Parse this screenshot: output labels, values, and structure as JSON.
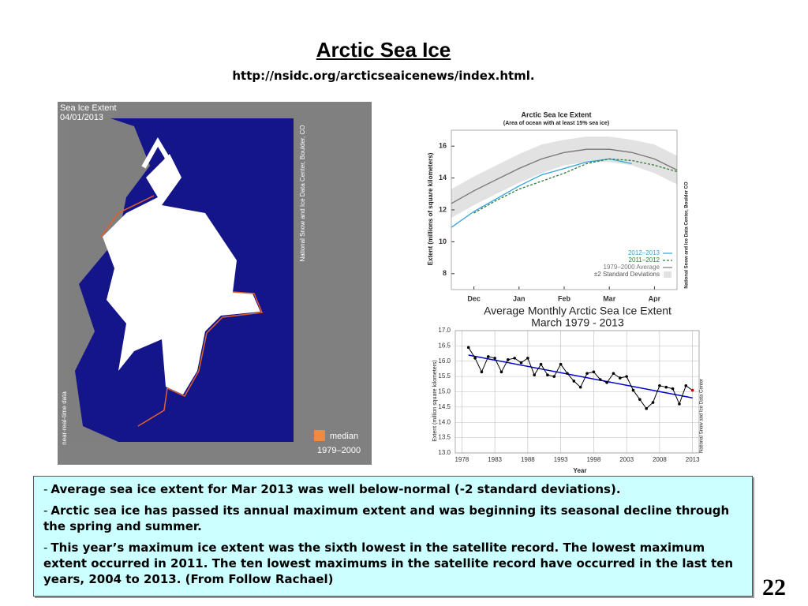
{
  "title": "Arctic Sea Ice",
  "url": "http://nsidc.org/arcticseaicenews/index.html.",
  "map": {
    "title": "Sea Ice Extent",
    "date": "04/01/2013",
    "credit": "National Snow and Ice Data Center, Boulder, CO",
    "note": "near-real-time data",
    "legend_label": "median",
    "legend_period": "1979–2000",
    "median_color": "#f08a40"
  },
  "chart_data": [
    {
      "type": "line",
      "title": "Arctic Sea Ice Extent",
      "subtitle": "(Area of ocean with at least 15% sea ice)",
      "y_label": "Extent (millions of square kilometers)",
      "credit": "National Snow and Ice Data Center, Boulder CO",
      "categories": [
        null,
        "Dec",
        null,
        "Jan",
        null,
        "Feb",
        null,
        "Mar",
        null,
        "Apr",
        null
      ],
      "ylim": [
        7,
        17
      ],
      "yticks": [
        8,
        10,
        12,
        14,
        16
      ],
      "series": [
        {
          "name": "2012–2013",
          "color": "#33a3dc",
          "values": [
            10.9,
            11.9,
            12.7,
            13.5,
            14.2,
            14.6,
            15.0,
            15.2,
            14.9,
            null,
            null
          ]
        },
        {
          "name": "2011–2012",
          "color": "#2f7a3a",
          "dash": true,
          "values": [
            null,
            11.8,
            12.6,
            13.3,
            13.8,
            14.3,
            14.9,
            15.2,
            15.1,
            14.8,
            14.4
          ]
        },
        {
          "name": "1979–2000 Average",
          "color": "#777777",
          "values": [
            12.4,
            13.2,
            13.9,
            14.6,
            15.2,
            15.6,
            15.8,
            15.8,
            15.6,
            15.2,
            14.5
          ]
        }
      ],
      "band": {
        "name": "±2 Standard Deviations",
        "color": "#e2e2e2",
        "lower": [
          11.5,
          12.3,
          13.0,
          13.7,
          14.3,
          14.8,
          15.0,
          15.0,
          14.8,
          14.3,
          13.6
        ],
        "upper": [
          13.3,
          14.1,
          14.8,
          15.5,
          16.1,
          16.4,
          16.6,
          16.6,
          16.4,
          16.1,
          15.4
        ]
      }
    },
    {
      "type": "line",
      "title": "Average Monthly Arctic Sea Ice Extent",
      "subtitle": "March 1979 - 2013",
      "y_label": "Extent (million square kilometers)",
      "x_label": "Year",
      "credit": "National Snow and Ice Data Center",
      "x": [
        1979,
        1980,
        1981,
        1982,
        1983,
        1984,
        1985,
        1986,
        1987,
        1988,
        1989,
        1990,
        1991,
        1992,
        1993,
        1994,
        1995,
        1996,
        1997,
        1998,
        1999,
        2000,
        2001,
        2002,
        2003,
        2004,
        2005,
        2006,
        2007,
        2008,
        2009,
        2010,
        2011,
        2012,
        2013
      ],
      "xlim": [
        1977,
        2014
      ],
      "xticks": [
        1978,
        1983,
        1988,
        1993,
        1998,
        2003,
        2008,
        2013
      ],
      "ylim": [
        13,
        17
      ],
      "yticks": [
        {
          "value": 13,
          "label": "13.0"
        },
        {
          "value": 13.5,
          "label": "13.5"
        },
        {
          "value": 14,
          "label": "14.0"
        },
        {
          "value": 14.5,
          "label": "14.5"
        },
        {
          "value": 15,
          "label": "15.0"
        },
        {
          "value": 15.5,
          "label": "15.5"
        },
        {
          "value": 16,
          "label": "16.0"
        },
        {
          "value": 16.5,
          "label": "16.5"
        },
        {
          "value": 17,
          "label": "17.0"
        }
      ],
      "grid": true,
      "series": [
        {
          "color": "#000000",
          "marker": true,
          "last_color": "#cc0000",
          "values": [
            16.45,
            16.1,
            15.65,
            16.15,
            16.1,
            15.65,
            16.05,
            16.1,
            15.95,
            16.1,
            15.55,
            15.9,
            15.55,
            15.5,
            15.9,
            15.6,
            15.35,
            15.15,
            15.6,
            15.65,
            15.4,
            15.3,
            15.6,
            15.45,
            15.5,
            15.05,
            14.75,
            14.45,
            14.65,
            15.2,
            15.15,
            15.1,
            14.6,
            15.2,
            15.05
          ]
        }
      ],
      "trend": {
        "x": [
          1979,
          2013
        ],
        "values": [
          16.2,
          14.8
        ],
        "color": "#0000cc"
      }
    }
  ],
  "bullets": [
    {
      "marker": "-",
      "text": "Average sea ice extent for Mar 2013 was well below-normal (-2 standard deviations)."
    },
    {
      "marker": "-",
      "text": "Arctic sea ice has passed its annual maximum extent and was beginning its seasonal decline through the spring and summer."
    },
    {
      "marker": "-",
      "text": "This year’s maximum ice extent was the sixth lowest in the satellite record. The lowest maximum extent occurred in 2011. The ten lowest maximums in the satellite record have occurred in the last ten years, 2004 to 2013. (From Follow Rachael)"
    }
  ],
  "page_number": "22"
}
